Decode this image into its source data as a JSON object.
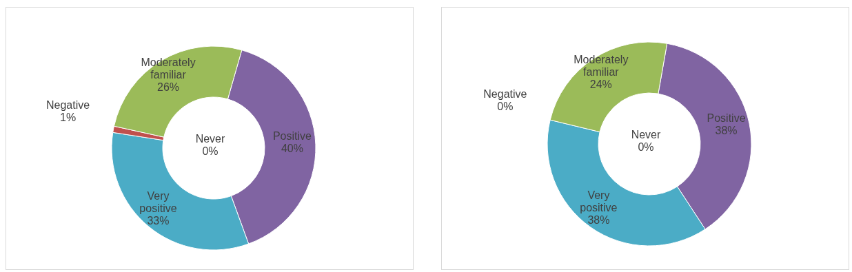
{
  "chart_data": [
    {
      "type": "donut",
      "categories": [
        "Never",
        "Positive",
        "Very positive",
        "Negative",
        "Moderately familiar"
      ],
      "values": [
        0,
        40,
        33,
        1,
        26
      ],
      "colors": [
        "#4f81bd",
        "#8064a2",
        "#4bacc6",
        "#c0504d",
        "#9bbb59"
      ],
      "value_labels": [
        "0%",
        "40%",
        "33%",
        "1%",
        "26%"
      ]
    },
    {
      "type": "donut",
      "categories": [
        "Never",
        "Positive",
        "Very positive",
        "Negative",
        "Moderately familiar"
      ],
      "values": [
        0,
        38,
        38,
        0,
        24
      ],
      "colors": [
        "#4f81bd",
        "#8064a2",
        "#4bacc6",
        "#c0504d",
        "#9bbb59"
      ],
      "value_labels": [
        "0%",
        "38%",
        "38%",
        "0%",
        "24%"
      ]
    }
  ]
}
